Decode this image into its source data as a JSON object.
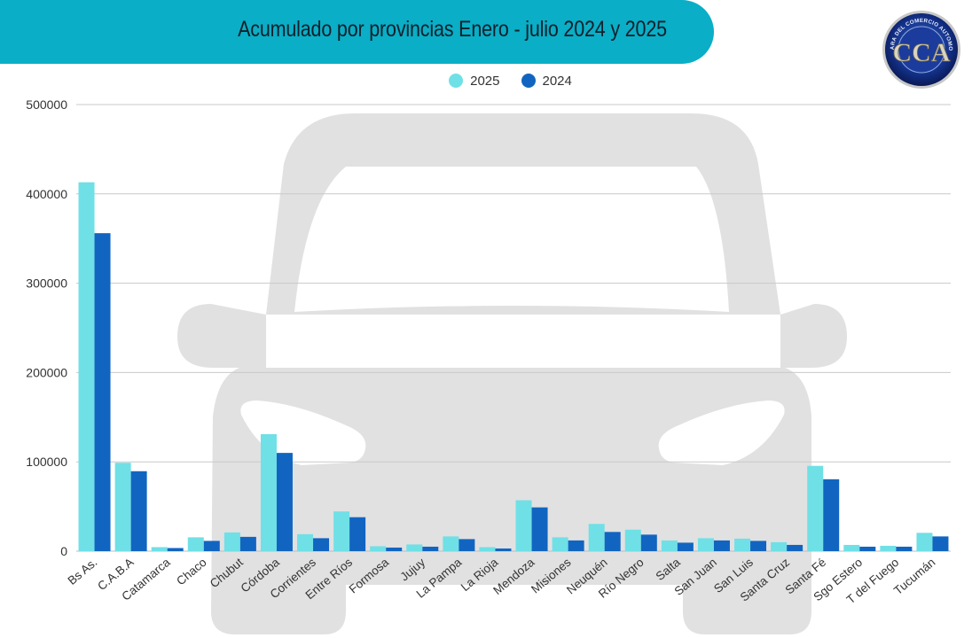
{
  "header": {
    "title": "Acumulado por provincias Enero  - julio 2024 y 2025",
    "banner_color": "#0aaec6"
  },
  "logo": {
    "arc_text": "CAMARA DEL COMERCIO AUTOMOTOR",
    "letters": "CCA"
  },
  "background_icon": "car-silhouette-icon",
  "chart_data": {
    "type": "bar",
    "title": "Acumulado por provincias Enero  - julio 2024 y 2025",
    "xlabel": "",
    "ylabel": "",
    "ylim": [
      0,
      500000
    ],
    "yticks": [
      "0",
      "100000",
      "200000",
      "300000",
      "400000",
      "500000"
    ],
    "grid": true,
    "legend_position": "top-center",
    "categories": [
      "Bs As.",
      "C.A.B.A",
      "Catamarca",
      "Chaco",
      "Chubut",
      "Córdoba",
      "Corrientes",
      "Entre Ríos",
      "Formosa",
      "Jujuy",
      "La Pampa",
      "La Rioja",
      "Mendoza",
      "Misiones",
      "Neuquén",
      "Río Negro",
      "Salta",
      "San Juan",
      "San Luis",
      "Santa Cruz",
      "Santa Fé",
      "Sgo Estero",
      "T del Fuego",
      "Tucumán"
    ],
    "series": [
      {
        "name": "2025",
        "color": "#6fe0e6",
        "values": [
          413000,
          99000,
          4500,
          15500,
          21000,
          131000,
          19000,
          44500,
          5500,
          7500,
          16500,
          4500,
          57000,
          15500,
          30500,
          24000,
          12000,
          14500,
          14000,
          10000,
          95500,
          7000,
          6000,
          20500
        ]
      },
      {
        "name": "2024",
        "color": "#1165c1",
        "values": [
          356000,
          89500,
          3500,
          11500,
          16000,
          110000,
          14500,
          38000,
          4000,
          5000,
          13500,
          3000,
          49000,
          12000,
          21500,
          18500,
          9500,
          12000,
          11500,
          7000,
          80500,
          5000,
          5000,
          16500
        ]
      }
    ]
  }
}
